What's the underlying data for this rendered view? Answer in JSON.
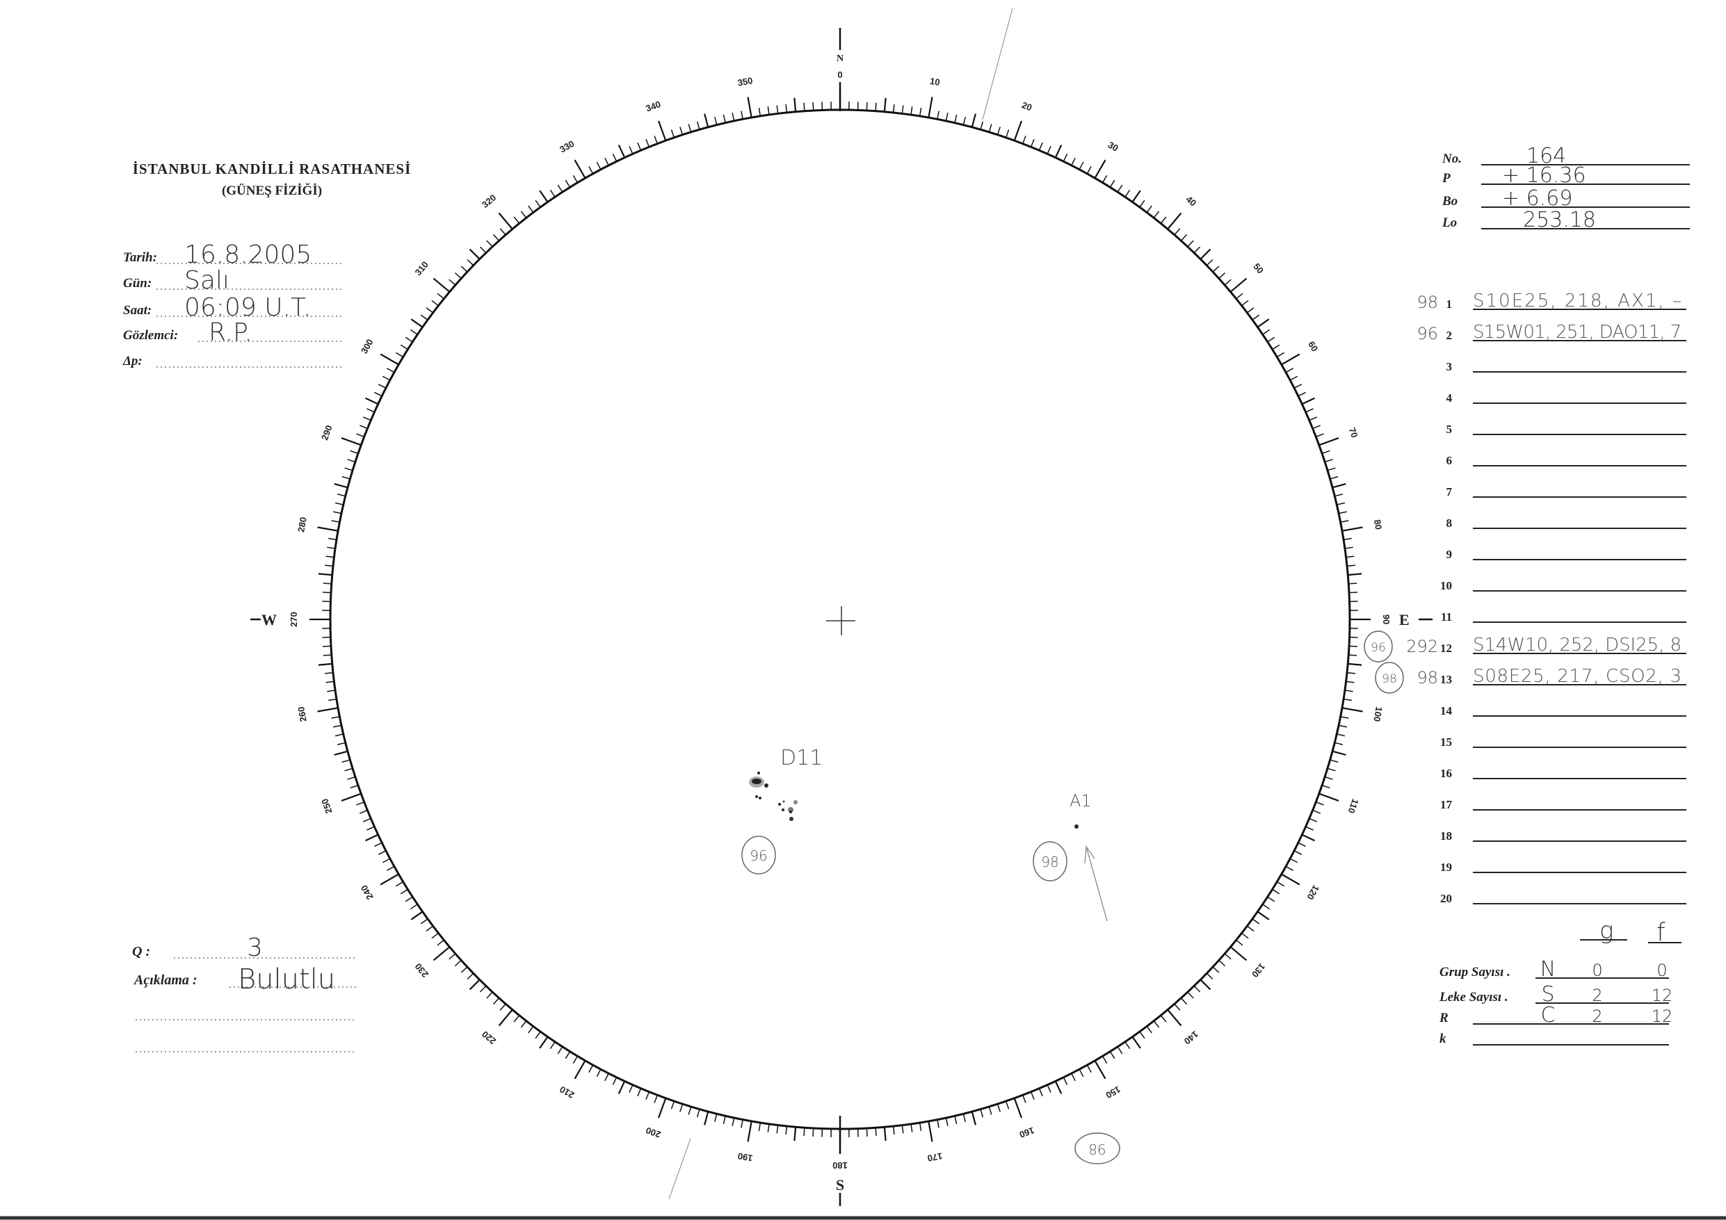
{
  "header": {
    "title": "İSTANBUL KANDİLLİ RASATHANESİ",
    "subtitle": "(GÜNEŞ FİZİĞİ)"
  },
  "observation": {
    "fields": [
      {
        "label": "Tarih:",
        "value": "16.8.2005"
      },
      {
        "label": "Gün:",
        "value": "Salı"
      },
      {
        "label": "Saat:",
        "value": "06:09 U.T."
      },
      {
        "label": "Gözlemci:",
        "value": "R.P."
      },
      {
        "label": "Δp:",
        "value": ""
      }
    ],
    "q_label": "Q :",
    "q_value": "3",
    "note_label": "Açıklama :",
    "note_value": "Bulutlu"
  },
  "ephemeris": [
    {
      "label": "No.",
      "value": "164"
    },
    {
      "label": "P",
      "value": "+ 16.36"
    },
    {
      "label": "Bo",
      "value": "+ 6.69"
    },
    {
      "label": "Lo",
      "value": "253.18"
    }
  ],
  "groups": [
    {
      "n": "1",
      "prefix": "98",
      "text": "S10E25, 218, AX1, –"
    },
    {
      "n": "2",
      "prefix": "96",
      "text": "S15W01, 251, DAO11, 7"
    },
    {
      "n": "3",
      "prefix": "",
      "text": ""
    },
    {
      "n": "4",
      "prefix": "",
      "text": ""
    },
    {
      "n": "5",
      "prefix": "",
      "text": ""
    },
    {
      "n": "6",
      "prefix": "",
      "text": ""
    },
    {
      "n": "7",
      "prefix": "",
      "text": ""
    },
    {
      "n": "8",
      "prefix": "",
      "text": ""
    },
    {
      "n": "9",
      "prefix": "",
      "text": ""
    },
    {
      "n": "10",
      "prefix": "",
      "text": ""
    },
    {
      "n": "11",
      "prefix": "",
      "text": ""
    },
    {
      "n": "12",
      "prefix": "292",
      "circled": "96",
      "text": "S14W10, 252, DSI25, 8"
    },
    {
      "n": "13",
      "prefix": "98",
      "circled": "98",
      "text": "S08E25, 217, CSO2, 3"
    },
    {
      "n": "14",
      "prefix": "",
      "text": ""
    },
    {
      "n": "15",
      "prefix": "",
      "text": ""
    },
    {
      "n": "16",
      "prefix": "",
      "text": ""
    },
    {
      "n": "17",
      "prefix": "",
      "text": ""
    },
    {
      "n": "18",
      "prefix": "",
      "text": ""
    },
    {
      "n": "19",
      "prefix": "",
      "text": ""
    },
    {
      "n": "20",
      "prefix": "",
      "text": ""
    }
  ],
  "summary": {
    "col_g": "g",
    "col_f": "f",
    "rows": [
      {
        "label": "Grup Sayısı .",
        "letter": "N",
        "g": "0",
        "f": "0"
      },
      {
        "label": "Leke Sayısı .",
        "letter": "S",
        "g": "2",
        "f": "12"
      },
      {
        "label": "R",
        "letter": "C",
        "g": "2",
        "f": "12"
      },
      {
        "label": "k",
        "letter": "",
        "g": "",
        "f": ""
      }
    ]
  },
  "disk": {
    "north": "N",
    "south": "S",
    "east": "E",
    "west": "W",
    "degree_labels": [
      "0",
      "10",
      "20",
      "30",
      "40",
      "50",
      "60",
      "70",
      "80",
      "90",
      "100",
      "110",
      "120",
      "130",
      "140",
      "150",
      "160",
      "170",
      "180",
      "190",
      "200",
      "210",
      "220",
      "230",
      "240",
      "250",
      "260",
      "270",
      "280",
      "290",
      "300",
      "310",
      "320",
      "330",
      "340",
      "350"
    ],
    "annotations": {
      "group_96_class": "D11",
      "group_96_number": "96",
      "group_98_class": "A1",
      "group_98_number": "98",
      "margin_number": "98"
    }
  }
}
